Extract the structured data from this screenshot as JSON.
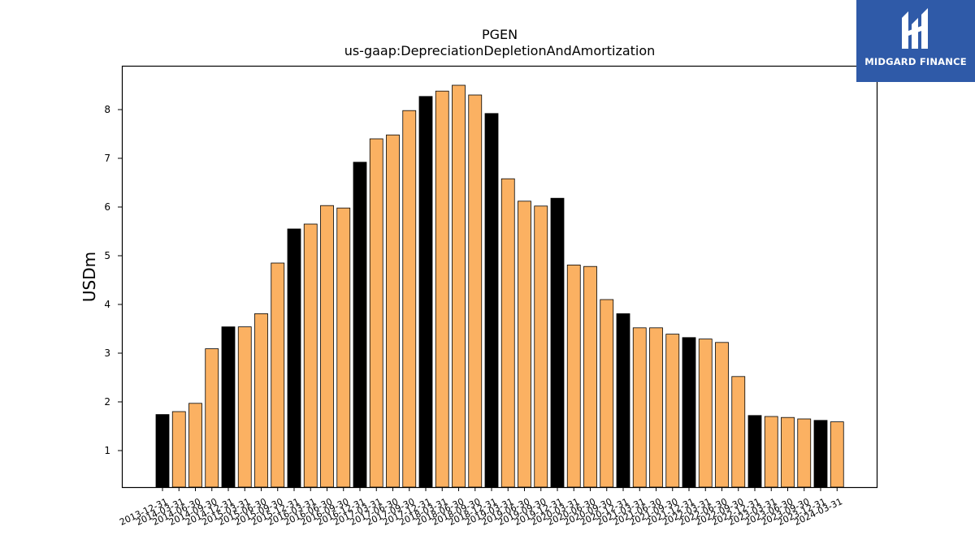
{
  "chart_data": {
    "type": "bar",
    "title": "PGEN",
    "subtitle": "us-gaap:DepreciationDepletionAndAmortization",
    "xlabel": "",
    "ylabel": "USDm",
    "ylim": [
      0.25,
      8.9
    ],
    "yticks": [
      1,
      2,
      3,
      4,
      5,
      6,
      7,
      8
    ],
    "grid": false,
    "colors": {
      "quarter": "#fbb162",
      "annual": "#000000",
      "edge": "#000000"
    },
    "categories": [
      "2013-12-31",
      "2014-03-31",
      "2014-06-30",
      "2014-09-30",
      "2014-12-31",
      "2015-03-31",
      "2015-06-30",
      "2015-09-30",
      "2015-12-31",
      "2016-03-31",
      "2016-06-30",
      "2016-09-30",
      "2016-12-31",
      "2017-03-31",
      "2017-06-30",
      "2017-09-30",
      "2017-12-31",
      "2018-03-31",
      "2018-06-30",
      "2018-09-30",
      "2018-12-31",
      "2019-03-31",
      "2019-06-30",
      "2019-09-30",
      "2019-12-31",
      "2020-03-31",
      "2020-06-30",
      "2020-09-30",
      "2020-12-31",
      "2021-03-31",
      "2021-06-30",
      "2021-09-30",
      "2021-12-31",
      "2022-03-31",
      "2022-06-30",
      "2022-09-30",
      "2022-12-31",
      "2023-03-31",
      "2023-06-30",
      "2023-09-30",
      "2023-12-31",
      "2024-03-31"
    ],
    "values": [
      1.74,
      1.8,
      1.97,
      3.09,
      3.54,
      3.54,
      3.81,
      4.85,
      5.55,
      5.65,
      6.03,
      5.98,
      6.92,
      7.4,
      7.48,
      7.98,
      8.27,
      8.38,
      8.5,
      8.3,
      7.92,
      6.58,
      6.12,
      6.02,
      6.18,
      4.81,
      4.78,
      4.1,
      3.81,
      3.52,
      3.52,
      3.39,
      3.32,
      3.29,
      3.22,
      2.52,
      1.72,
      1.7,
      1.68,
      1.65,
      1.62,
      1.59
    ],
    "annual": [
      true,
      false,
      false,
      false,
      true,
      false,
      false,
      false,
      true,
      false,
      false,
      false,
      true,
      false,
      false,
      false,
      true,
      false,
      false,
      false,
      true,
      false,
      false,
      false,
      true,
      false,
      false,
      false,
      true,
      false,
      false,
      false,
      true,
      false,
      false,
      false,
      true,
      false,
      false,
      false,
      true,
      false
    ]
  },
  "logo": {
    "text": "MIDGARD FINANCE",
    "bg": "#2f5aa8"
  }
}
